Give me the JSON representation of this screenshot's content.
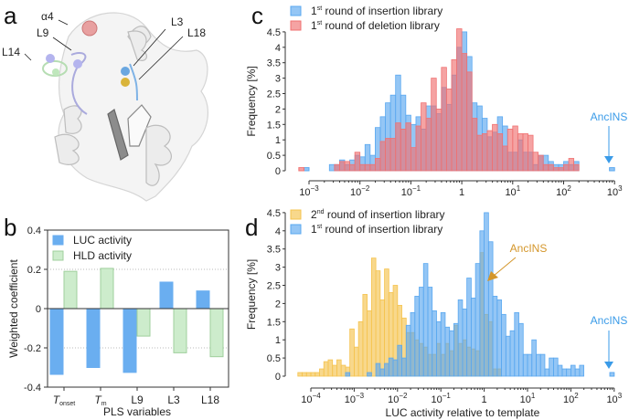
{
  "panel_labels": {
    "a": "a",
    "b": "b",
    "c": "c",
    "d": "d"
  },
  "panel_a": {
    "labels": [
      "α4",
      "L9",
      "L14",
      "L3",
      "L18"
    ]
  },
  "colors": {
    "luc": "#6aaef0",
    "hld": "#cdeccc",
    "insertion1": "#5aa8f0",
    "deletion1": "#f07272",
    "insertion2": "#f5c34e",
    "ancins_blue": "#3a9be8",
    "ancins_orange": "#d4962a"
  },
  "chart_data": [
    {
      "id": "b",
      "type": "bar",
      "title": "",
      "xlabel": "PLS variables",
      "ylabel": "Weighted coefficient",
      "categories": [
        {
          "main": "T",
          "sub": "onset"
        },
        {
          "main": "T",
          "sub": "m"
        },
        {
          "main": "L9",
          "sub": ""
        },
        {
          "main": "L3",
          "sub": ""
        },
        {
          "main": "L18",
          "sub": ""
        }
      ],
      "series": [
        {
          "name": "LUC activity",
          "values": [
            -0.335,
            -0.3,
            -0.325,
            0.135,
            0.09
          ]
        },
        {
          "name": "HLD activity",
          "values": [
            0.19,
            0.205,
            -0.14,
            -0.225,
            -0.245
          ]
        }
      ],
      "ylim": [
        -0.4,
        0.4
      ],
      "yticks": [
        "-0.4",
        "-0.2",
        "0",
        "0.2",
        "0.4"
      ],
      "grid": "dotted at ±0.2",
      "legend": "top-left"
    },
    {
      "id": "c",
      "type": "bar",
      "xscale": "log",
      "xlabel": "",
      "ylabel": "Frequency [%]",
      "ylim": [
        0,
        4.5
      ],
      "xlim_log10": [
        -3,
        3
      ],
      "yticks": [
        "0",
        "0.5",
        "1",
        "1.5",
        "2",
        "2.5",
        "3",
        "3.5",
        "4",
        "4.5"
      ],
      "xticks": [
        {
          "base": "10",
          "exp": "−3"
        },
        {
          "base": "10",
          "exp": "−2"
        },
        {
          "base": "10",
          "exp": "−1"
        },
        {
          "base": "1",
          "exp": ""
        },
        {
          "base": "10",
          "exp": "1"
        },
        {
          "base": "10",
          "exp": "2"
        },
        {
          "base": "10",
          "exp": "3"
        }
      ],
      "bin_width_log10": 0.1,
      "series": [
        {
          "name_pre": "1",
          "name_sup": "st",
          "name_post": " round of insertion library",
          "start_log10": -2.6,
          "values": [
            0.2,
            0.2,
            0.35,
            0.2,
            0.35,
            0.5,
            0.45,
            0.85,
            0.5,
            1.4,
            1.75,
            2.2,
            2.45,
            3.1,
            2.45,
            1.8,
            1.5,
            1.75,
            1.35,
            2.1,
            2.1,
            1.85,
            2.7,
            2.15,
            3.1,
            4.0,
            4.5,
            3.7,
            2.2,
            2.1,
            1.7,
            1.1,
            1.25,
            1.75,
            1.45,
            0.6,
            0.6,
            1.0,
            0.6,
            0.6,
            0.2,
            0.5,
            0.5,
            0.3,
            0.2,
            0.2,
            0.3,
            0.2,
            0.3
          ],
          "outliers": [
            [
              -3.1,
              0.1
            ],
            [
              2.9,
              0.1
            ]
          ]
        },
        {
          "name_pre": "1",
          "name_sup": "st",
          "name_post": " round of deletion library",
          "start_log10": -2.5,
          "values": [
            0.2,
            0.3,
            0.3,
            0.2,
            0.6,
            0.2,
            0.2,
            0.2,
            0.4,
            0.95,
            1.05,
            1.05,
            1.55,
            1.35,
            1.55,
            0.75,
            1.45,
            2.2,
            1.7,
            3.0,
            2.0,
            3.35,
            2.65,
            3.6,
            4.6,
            3.8,
            3.2,
            1.7,
            1.15,
            1.2,
            1.3,
            1.5,
            1.2,
            0.8,
            1.35,
            1.45,
            1.2,
            1.2,
            1.15,
            0.6,
            0.5,
            0.2,
            0.2,
            0.1,
            0.1,
            0.2,
            0.4,
            0.2
          ],
          "outliers": [
            [
              -3.2,
              0.1
            ]
          ]
        }
      ],
      "annotation": "AncINS",
      "legend": "top-left"
    },
    {
      "id": "d",
      "type": "bar",
      "xscale": "log",
      "xlabel": "LUC activity relative to template",
      "ylabel": "Frequency [%]",
      "ylim": [
        0,
        4.5
      ],
      "xlim_log10": [
        -4,
        3
      ],
      "yticks": [
        "0",
        "0.5",
        "1",
        "1.5",
        "2",
        "2.5",
        "3",
        "3.5",
        "4",
        "4.5"
      ],
      "xticks": [
        {
          "base": "10",
          "exp": "−4"
        },
        {
          "base": "10",
          "exp": "−3"
        },
        {
          "base": "10",
          "exp": "−2"
        },
        {
          "base": "10",
          "exp": "−1"
        },
        {
          "base": "1",
          "exp": ""
        },
        {
          "base": "10",
          "exp": "1"
        },
        {
          "base": "10",
          "exp": "2"
        },
        {
          "base": "10",
          "exp": "3"
        }
      ],
      "bin_width_log10": 0.1,
      "series": [
        {
          "name_pre": "2",
          "name_sup": "nd",
          "name_post": " round of insertion library",
          "start_log10": -4.3,
          "values": [
            0.1,
            0.1,
            0.1,
            0.1,
            0.1,
            0.2,
            0.4,
            0.45,
            0.3,
            0.45,
            0.3,
            0.25,
            1.3,
            0.8,
            1.5,
            2.25,
            1.8,
            3.25,
            2.9,
            2.1,
            2.95,
            2.3,
            2.5,
            1.95,
            1.6,
            1.2,
            1.2,
            1.0,
            0.9,
            0.8,
            0.6,
            0.6,
            0.9,
            0.6,
            0.9,
            0.7,
            1.4,
            0.9,
            1.0,
            0.8,
            0.75,
            0.7,
            3.4,
            1.7,
            1.5,
            0.2,
            0.2
          ],
          "outliers": []
        },
        {
          "name_pre": "1",
          "name_sup": "st",
          "name_post": " round of insertion library",
          "start_log10": -3.2,
          "values": [
            0.1,
            0,
            0,
            0,
            0,
            0.1,
            0,
            0.35,
            0.2,
            0.35,
            0.5,
            0.45,
            0.85,
            0.5,
            1.4,
            1.75,
            2.2,
            2.45,
            3.1,
            2.45,
            1.8,
            1.5,
            1.75,
            1.35,
            1.25,
            1.45,
            2.1,
            1.85,
            2.7,
            2.15,
            3.1,
            4.0,
            4.5,
            3.7,
            2.2,
            2.1,
            1.7,
            1.1,
            1.25,
            1.75,
            1.45,
            0.6,
            0.6,
            1.0,
            0.6,
            0.6,
            0.2,
            0.5,
            0.5,
            0.3,
            0.2,
            0.2,
            0.3,
            0.2,
            0.3
          ],
          "outliers": [
            [
              2.9,
              0.1
            ]
          ]
        }
      ],
      "annotations": [
        "AncINS",
        "AncINS"
      ],
      "legend": "top-left"
    }
  ]
}
